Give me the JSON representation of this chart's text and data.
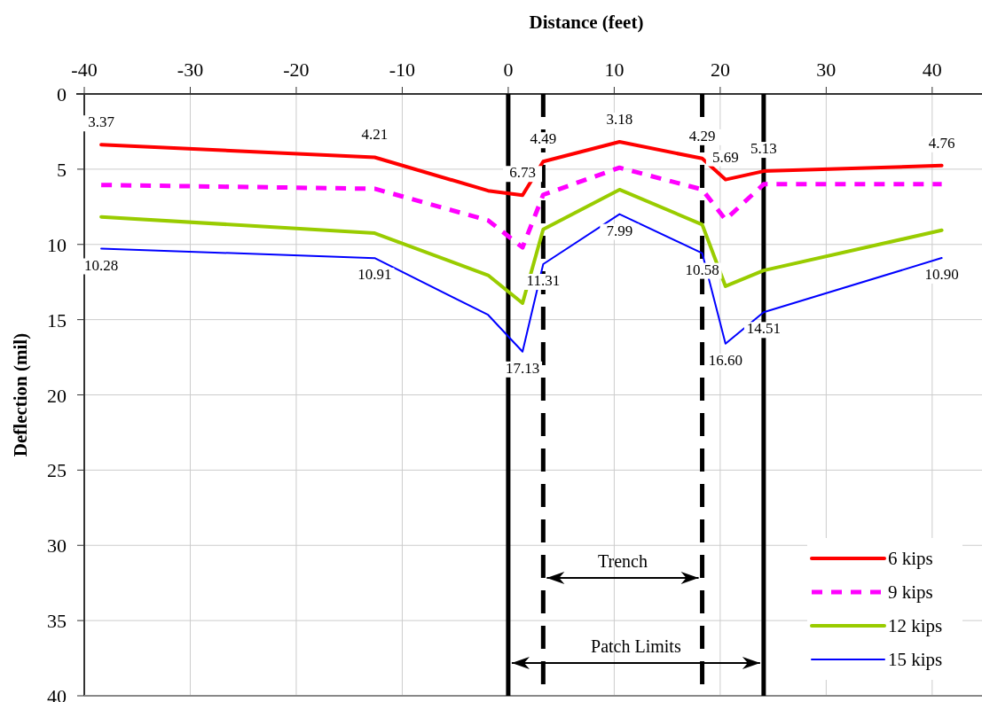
{
  "chart_data": {
    "type": "line",
    "xlabel": "Distance (feet)",
    "ylabel": "Deflection (mil)",
    "x": [
      -38.4,
      -12.6,
      -1.9,
      1.35,
      3.3,
      10.5,
      18.3,
      20.5,
      24.1,
      40.9
    ],
    "xlim": [
      -40,
      44.7
    ],
    "xticks": [
      -40,
      -30,
      -20,
      -10,
      0,
      10,
      20,
      30,
      40
    ],
    "ylim": [
      40,
      0
    ],
    "yticks": [
      0,
      5,
      10,
      15,
      20,
      25,
      30,
      35,
      40
    ],
    "grid": true,
    "legend": "bottom right",
    "marker": "none",
    "series": [
      {
        "name": "6 kips",
        "color": "#ff0000",
        "line_style": "solid",
        "values": [
          3.37,
          4.21,
          6.43,
          6.73,
          4.49,
          3.18,
          4.29,
          5.69,
          5.13,
          4.76
        ],
        "value_labels": [
          "3.37",
          "4.21",
          null,
          "6.73",
          "4.49",
          "3.18",
          "4.29",
          "5.69",
          "5.13",
          "4.76"
        ]
      },
      {
        "name": "9 kips",
        "color": "#ff00ff",
        "line_style": "dashed",
        "values": [
          6.05,
          6.3,
          8.4,
          10.2,
          6.7,
          4.9,
          6.35,
          8.35,
          6.0,
          6.0
        ]
      },
      {
        "name": "12 kips",
        "color": "#99cc00",
        "line_style": "solid",
        "values": [
          8.17,
          9.25,
          12.05,
          13.9,
          9.0,
          6.36,
          8.68,
          12.78,
          11.73,
          9.06
        ]
      },
      {
        "name": "15 kips",
        "color": "#0000ff",
        "line_style": "solid",
        "values": [
          10.28,
          10.91,
          14.68,
          17.13,
          11.31,
          7.99,
          10.58,
          16.6,
          14.51,
          10.9
        ],
        "value_labels": [
          "10.28",
          "10.91",
          null,
          "17.13",
          "11.31",
          "7.99",
          "10.58",
          "16.60",
          "14.51",
          "10.90"
        ]
      }
    ],
    "ref_lines": [
      {
        "axis": "x",
        "value": 3.3,
        "color": "#000000",
        "line_style": "dashed"
      },
      {
        "axis": "x",
        "value": 18.3,
        "color": "#000000",
        "line_style": "dashed"
      },
      {
        "axis": "x",
        "value": 0,
        "color": "#000000",
        "line_style": "solid"
      },
      {
        "axis": "x",
        "value": 24.1,
        "color": "#000000",
        "line_style": "solid"
      }
    ],
    "annotations": [
      "Trench",
      "Patch Limits"
    ]
  }
}
